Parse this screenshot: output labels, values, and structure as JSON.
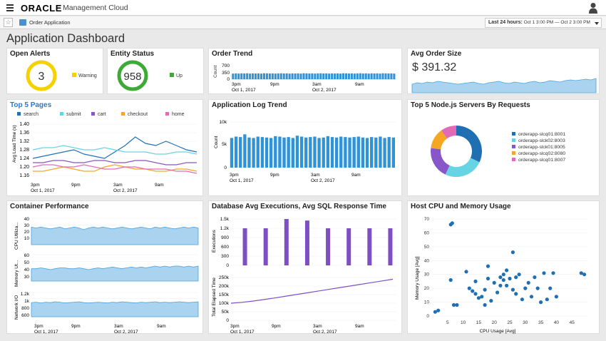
{
  "header": {
    "logo": "ORACLE",
    "product": "Management Cloud",
    "menu_icon": "hamburger-menu-icon",
    "user_icon": "user-icon"
  },
  "subheader": {
    "app_name": "Order Application",
    "time_label": "Last 24 hours:",
    "time_range": "Oct 1 3:00 PM — Oct 2 3:00 PM"
  },
  "page_title": "Application Dashboard",
  "time_axis": {
    "ticks": [
      "3pm",
      "9pm",
      "3am",
      "9am"
    ],
    "dates": [
      "Oct 1, 2017",
      "Oct 2, 2017"
    ]
  },
  "open_alerts": {
    "title": "Open Alerts",
    "value": "3",
    "legend": "Warning",
    "color": "#f5d100"
  },
  "entity_status": {
    "title": "Entity Status",
    "value": "958",
    "legend": "Up",
    "color": "#3daa36"
  },
  "order_trend": {
    "title": "Order Trend",
    "ylabel": "Count",
    "yticks": [
      "700",
      "350",
      "0"
    ]
  },
  "avg_order": {
    "title": "Avg Order Size",
    "value": "$ 391.32"
  },
  "top_pages": {
    "title": "Top 5 Pages",
    "ylabel": "Avg Load Time (s)",
    "yticks": [
      "1.40",
      "1.36",
      "1.32",
      "1.28",
      "1.24",
      "1.20",
      "1.16"
    ],
    "legend": [
      "search",
      "submit",
      "cart",
      "checkout",
      "home"
    ]
  },
  "log_trend": {
    "title": "Application Log Trend",
    "ylabel": "Count",
    "yticks": [
      "10k",
      "5k",
      "0"
    ]
  },
  "nodejs": {
    "title": "Top 5 Node.js Servers By Requests",
    "legend": [
      "orderapp-slcq01:8001",
      "orderapp-slck02:8003",
      "orderapp-slck01:8005",
      "orderapp-slcq02:8080",
      "orderapp-slcq01:8007"
    ]
  },
  "container": {
    "title": "Container Performance",
    "rows": [
      {
        "label": "CPU Utiliza...",
        "ticks": [
          "40",
          "30",
          "20",
          "10"
        ]
      },
      {
        "label": "Memory Ut...",
        "ticks": [
          "60",
          "50",
          "40",
          "30"
        ]
      },
      {
        "label": "Network I/O",
        "ticks": [
          "1.2k",
          "1k",
          "800",
          "600"
        ]
      }
    ]
  },
  "database": {
    "title": "Database Avg Executions, Avg SQL Response Time",
    "top_label": "Executions",
    "top_ticks": [
      "1.5k",
      "1.2k",
      "900",
      "600",
      "300",
      "0"
    ],
    "bottom_label": "Total Elapsed Time",
    "bottom_ticks": [
      "250k",
      "200k",
      "150k",
      "100k",
      "50k",
      "0"
    ]
  },
  "host": {
    "title": "Host CPU and Memory Usage",
    "xlabel": "CPU Usage [Avg]",
    "ylabel": "Memory Usage [Avg]",
    "xticks": [
      "5",
      "10",
      "15",
      "20",
      "25",
      "30",
      "35",
      "40",
      "45"
    ],
    "yticks": [
      "70",
      "60",
      "50",
      "40",
      "30",
      "20",
      "10",
      "0"
    ]
  },
  "chart_data": [
    {
      "type": "bar",
      "title": "Order Trend",
      "ylim": [
        0,
        700
      ],
      "values": [
        290,
        300,
        290,
        300,
        295,
        305,
        290,
        300,
        295,
        300,
        290,
        305,
        300,
        295,
        300,
        290,
        300,
        305,
        295,
        300,
        290,
        300,
        295,
        300,
        290,
        305,
        300,
        295,
        300,
        290,
        300,
        305,
        295,
        300,
        290,
        300,
        295,
        300,
        290,
        305,
        300,
        295,
        300,
        290,
        300,
        305,
        295,
        300,
        290,
        300,
        295,
        300,
        290,
        305,
        300,
        295,
        300,
        290
      ]
    },
    {
      "type": "area",
      "title": "Avg Order Size",
      "values": [
        12,
        14,
        13,
        15,
        14,
        16,
        15,
        14,
        13,
        12,
        13,
        14,
        15,
        13,
        12,
        14,
        15,
        16,
        14,
        13,
        15,
        14,
        13,
        15,
        16,
        14,
        15,
        17,
        16,
        15,
        17,
        18,
        17,
        18,
        19,
        18,
        20
      ]
    },
    {
      "type": "line",
      "title": "Top 5 Pages",
      "ylim": [
        1.16,
        1.4
      ],
      "series": [
        {
          "name": "search",
          "values": [
            1.24,
            1.25,
            1.26,
            1.27,
            1.28,
            1.26,
            1.25,
            1.24,
            1.27,
            1.3,
            1.34,
            1.31,
            1.3,
            1.32,
            1.3,
            1.28,
            1.27
          ]
        },
        {
          "name": "submit",
          "values": [
            1.28,
            1.29,
            1.29,
            1.3,
            1.29,
            1.28,
            1.28,
            1.29,
            1.28,
            1.27,
            1.27,
            1.27,
            1.26,
            1.26,
            1.27,
            1.27,
            1.26
          ]
        },
        {
          "name": "cart",
          "values": [
            1.22,
            1.22,
            1.23,
            1.23,
            1.22,
            1.22,
            1.23,
            1.23,
            1.22,
            1.22,
            1.23,
            1.23,
            1.22,
            1.21,
            1.21,
            1.22,
            1.22
          ]
        },
        {
          "name": "checkout",
          "values": [
            1.18,
            1.18,
            1.19,
            1.2,
            1.19,
            1.18,
            1.18,
            1.2,
            1.21,
            1.2,
            1.19,
            1.19,
            1.18,
            1.18,
            1.19,
            1.19,
            1.18
          ]
        },
        {
          "name": "home",
          "values": [
            1.2,
            1.21,
            1.21,
            1.2,
            1.2,
            1.21,
            1.2,
            1.19,
            1.19,
            1.2,
            1.2,
            1.19,
            1.19,
            1.19,
            1.18,
            1.18,
            1.17
          ]
        }
      ]
    },
    {
      "type": "bar",
      "title": "Application Log Trend",
      "ylim": [
        0,
        10000
      ],
      "values": [
        6500,
        6800,
        6700,
        7300,
        6600,
        6500,
        6800,
        6700,
        6600,
        6500,
        6900,
        6800,
        6600,
        6700,
        6500,
        7000,
        6800,
        6600,
        6700,
        6800,
        6500,
        6600,
        6900,
        6700,
        6600,
        6800,
        6700,
        6600,
        6700,
        6800,
        6600,
        6500,
        6700,
        6600,
        6800,
        6500,
        6700,
        6600
      ]
    },
    {
      "type": "pie",
      "title": "Top 5 Node.js Servers By Requests",
      "labels": [
        "orderapp-slcq01:8001",
        "orderapp-slck02:8003",
        "orderapp-slck01:8005",
        "orderapp-slcq02:8080",
        "orderapp-slcq01:8007"
      ],
      "values": [
        32,
        25,
        20,
        13,
        10
      ]
    },
    {
      "type": "area",
      "title": "Container Performance",
      "series": [
        {
          "name": "CPU Utiliza...",
          "ylim": [
            10,
            40
          ],
          "values": [
            30,
            29,
            30,
            29,
            28,
            29,
            30,
            28,
            29,
            30,
            29,
            27,
            29,
            30,
            29,
            30,
            29,
            28,
            29,
            30,
            29,
            28,
            29,
            30,
            29,
            28,
            30,
            29,
            30,
            29,
            28,
            29,
            30,
            29,
            30,
            29
          ]
        },
        {
          "name": "Memory Ut...",
          "ylim": [
            30,
            60
          ],
          "values": [
            44,
            44,
            45,
            44,
            43,
            44,
            45,
            45,
            44,
            44,
            45,
            44,
            43,
            44,
            45,
            44,
            45,
            46,
            45,
            44,
            45,
            46,
            45,
            46,
            45,
            46,
            47,
            46,
            47,
            46,
            47,
            47,
            46,
            47,
            46,
            47
          ]
        },
        {
          "name": "Network I/O",
          "ylim": [
            600,
            1200
          ],
          "values": [
            950,
            960,
            940,
            960,
            950,
            970,
            960,
            940,
            950,
            960,
            970,
            950,
            940,
            950,
            960,
            950,
            940,
            960,
            950,
            970,
            960,
            950,
            940,
            960,
            950,
            960,
            970,
            950,
            960,
            950,
            960,
            970,
            960,
            950,
            960,
            970
          ]
        }
      ]
    },
    {
      "type": "bar",
      "title": "Database Avg Executions",
      "ylim": [
        0,
        1500
      ],
      "values": [
        0,
        1200,
        0,
        1200,
        0,
        1500,
        0,
        1450,
        0,
        1200,
        0,
        1200,
        0,
        1200,
        0,
        1200
      ]
    },
    {
      "type": "line",
      "title": "Avg SQL Response Time",
      "ylim": [
        0,
        250000
      ],
      "values": [
        100000,
        105000,
        112000,
        121000,
        130000,
        140000,
        150000,
        160000,
        170000,
        180000,
        190000,
        200000,
        210000,
        220000,
        230000,
        240000
      ]
    },
    {
      "type": "scatter",
      "title": "Host CPU and Memory Usage",
      "xlabel": "CPU Usage [Avg]",
      "ylabel": "Memory Usage [Avg]",
      "xlim": [
        0,
        50
      ],
      "ylim": [
        0,
        70
      ],
      "points": [
        [
          1,
          3
        ],
        [
          2,
          4
        ],
        [
          6,
          66
        ],
        [
          6.5,
          67
        ],
        [
          7,
          8
        ],
        [
          8,
          8
        ],
        [
          6,
          26
        ],
        [
          11,
          32
        ],
        [
          12,
          20
        ],
        [
          13,
          18
        ],
        [
          14,
          25
        ],
        [
          14,
          16
        ],
        [
          15,
          13
        ],
        [
          16,
          14
        ],
        [
          17,
          8
        ],
        [
          17,
          19
        ],
        [
          18,
          36
        ],
        [
          18,
          27
        ],
        [
          19,
          11
        ],
        [
          20,
          24
        ],
        [
          21,
          17
        ],
        [
          22,
          28
        ],
        [
          22,
          22
        ],
        [
          23,
          26
        ],
        [
          23,
          30
        ],
        [
          24,
          33
        ],
        [
          24,
          22
        ],
        [
          25,
          27
        ],
        [
          26,
          46
        ],
        [
          26,
          19
        ],
        [
          27,
          16
        ],
        [
          27,
          28
        ],
        [
          28,
          30
        ],
        [
          29,
          12
        ],
        [
          30,
          20
        ],
        [
          31,
          24
        ],
        [
          32,
          14
        ],
        [
          33,
          28
        ],
        [
          34,
          20
        ],
        [
          35,
          10
        ],
        [
          36,
          31
        ],
        [
          37,
          12
        ],
        [
          38,
          20
        ],
        [
          39,
          31
        ],
        [
          40,
          14
        ],
        [
          48,
          31
        ],
        [
          49,
          30
        ]
      ]
    }
  ]
}
